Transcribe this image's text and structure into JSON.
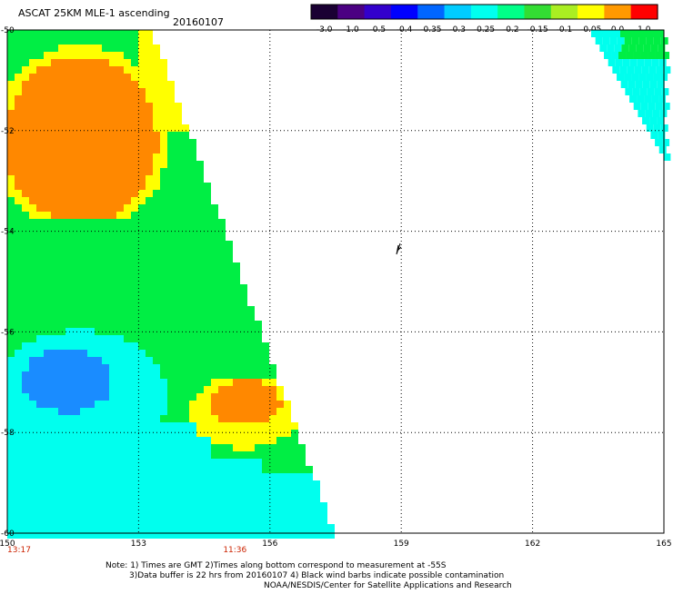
{
  "header": {
    "title": "ASCAT 25KM MLE-1 ascending",
    "date": "20160107"
  },
  "colorbar": {
    "tick_labels": [
      "-3.0",
      "-1.0",
      "-0.5",
      "-0.4",
      "-0.35",
      "-0.3",
      "-0.25",
      "-0.2",
      "-0.15",
      "-0.1",
      "-0.05",
      "0.0",
      "1.0"
    ],
    "colors": [
      "#1a0033",
      "#4b0082",
      "#3300cc",
      "#0000ff",
      "#0066ff",
      "#00ccff",
      "#00ffee",
      "#00ff88",
      "#33dd33",
      "#aaee22",
      "#ffff00",
      "#ff9900",
      "#ff0000"
    ]
  },
  "map": {
    "lon_labels": [
      "150",
      "153",
      "156",
      "159",
      "162",
      "165"
    ],
    "lat_labels": [
      "-50",
      "-52",
      "-54",
      "-56",
      "-58",
      "-60"
    ],
    "lon_range": [
      150,
      165
    ],
    "lat_range": [
      -60,
      -50
    ],
    "grid_lon": [
      153,
      156,
      159,
      162
    ],
    "grid_lat": [
      -52,
      -54,
      -56,
      -58
    ],
    "palette": {
      "blue": "#1a8cff",
      "cyan": "#00ffee",
      "green": "#00ee44",
      "yellow": "#ffff00",
      "orange": "#ff8800"
    }
  },
  "time_labels": [
    {
      "text": "13:17",
      "lon": 150,
      "color": "#cc2200"
    },
    {
      "text": "11:36",
      "lon": 155.2,
      "color": "#cc2200"
    }
  ],
  "notes": {
    "line1": "Note: 1) Times are GMT 2)Times along bottom correspond to measurement at -55S",
    "line2": "3)Data buffer is 22 hrs from 20160107 4) Black wind barbs indicate possible contamination",
    "line3": "NOAA/NESDIS/Center for Satellite Applications and Research"
  }
}
